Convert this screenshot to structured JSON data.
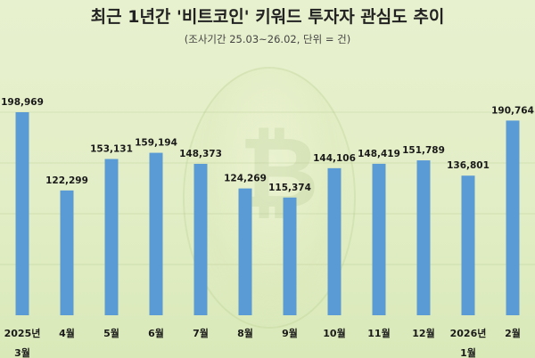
{
  "title": "최근 1년간 '비트코인' 키워드 투자자 관심도 추이",
  "subtitle": "(조사기간 25.03~26.02, 단위 = 건)",
  "chart_data": {
    "type": "bar",
    "title": "최근 1년간 '비트코인' 키워드 투자자 관심도 추이",
    "subtitle": "(조사기간 25.03~26.02, 단위 = 건)",
    "categories": [
      "2025년\n3월",
      "4월",
      "5월",
      "6월",
      "7월",
      "8월",
      "9월",
      "10월",
      "11월",
      "12월",
      "2026년\n1월",
      "2월"
    ],
    "values": [
      198969,
      122299,
      153131,
      159194,
      148373,
      124269,
      115374,
      144106,
      148419,
      151789,
      136801,
      190764
    ],
    "value_labels": [
      "198,969",
      "122,299",
      "153,131",
      "159,194",
      "148,373",
      "124,269",
      "115,374",
      "144,106",
      "148,419",
      "151,789",
      "136,801",
      "190,764"
    ],
    "ylim": [
      0,
      200000
    ],
    "bar_color": "#5b9bd5",
    "grid": true
  }
}
